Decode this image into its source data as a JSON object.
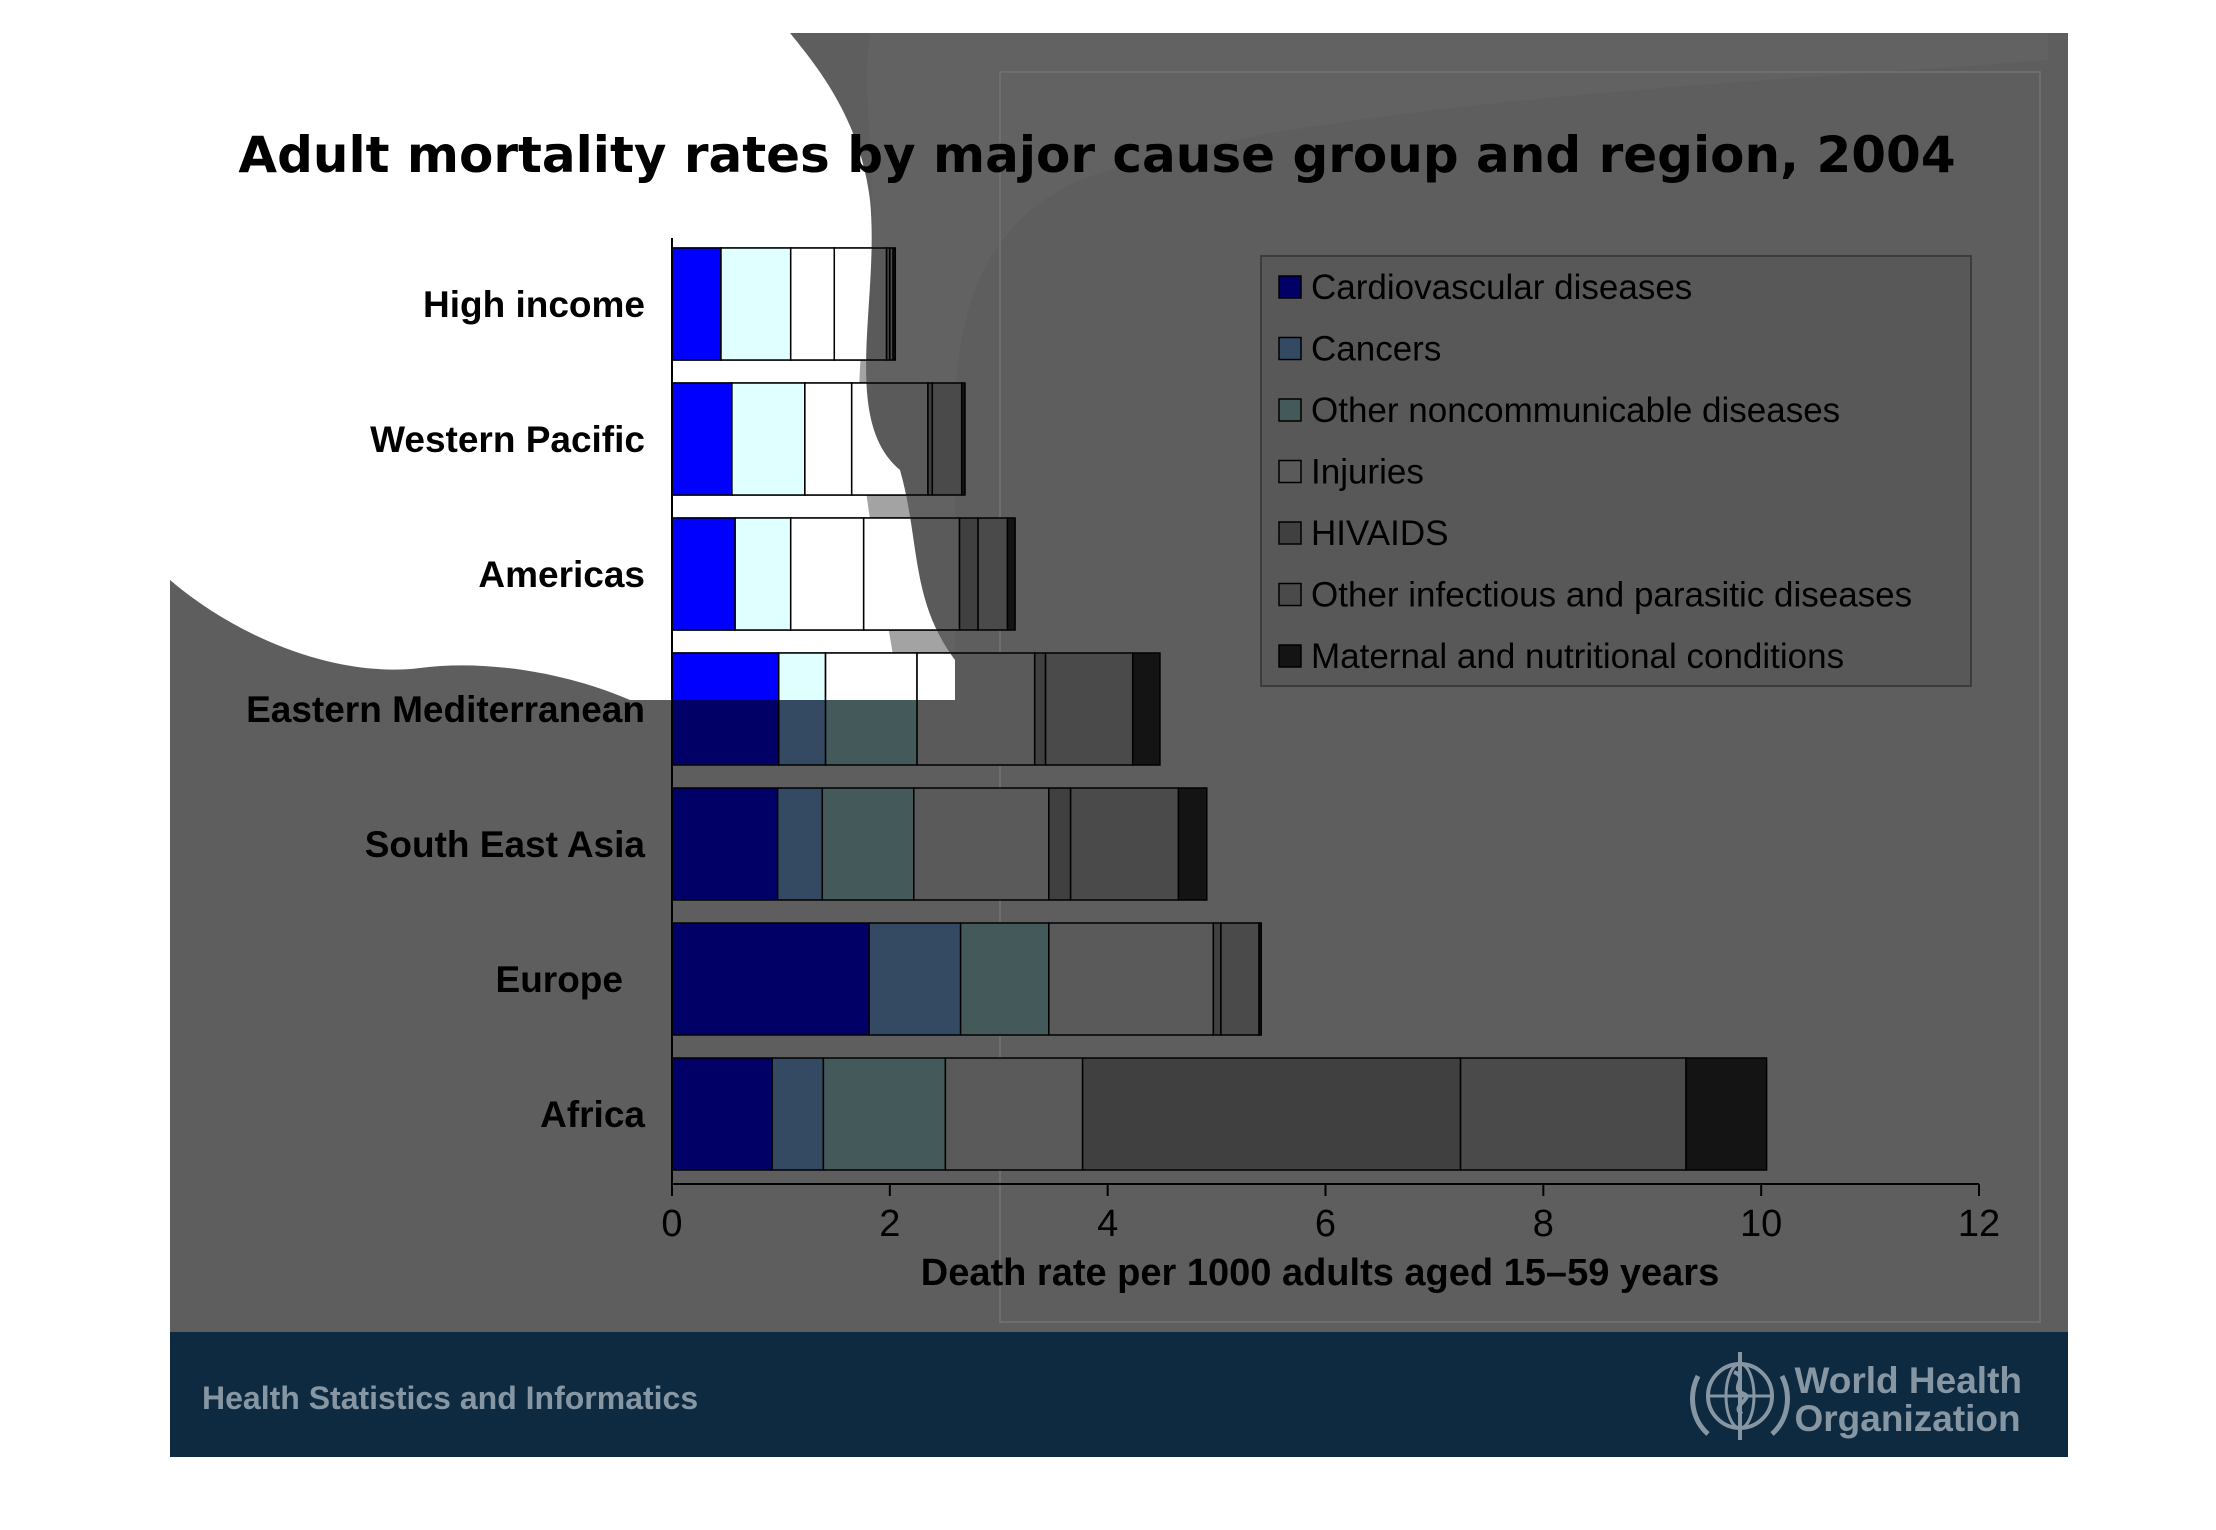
{
  "chart_data": {
    "type": "bar",
    "orientation": "horizontal",
    "stacked": true,
    "title": "Adult mortality rates by major cause group and region, 2004",
    "xlabel": "Death rate per 1000 adults aged 15–59 years",
    "ylabel": "",
    "xlim": [
      0,
      12
    ],
    "xticks": [
      0,
      2,
      4,
      6,
      8,
      10,
      12
    ],
    "grid": false,
    "legend_position": "top-right",
    "categories": [
      "High income",
      "Western Pacific",
      "Americas",
      "Eastern Mediterranean",
      "South East Asia",
      "Europe",
      "Africa"
    ],
    "series": [
      {
        "name": "Cardiovascular diseases",
        "color": "#000066",
        "values": [
          0.45,
          0.55,
          0.58,
          0.98,
          0.97,
          1.81,
          0.92
        ]
      },
      {
        "name": "Cancers",
        "color": "#344a63",
        "values": [
          0.64,
          0.67,
          0.51,
          0.43,
          0.41,
          0.84,
          0.47
        ]
      },
      {
        "name": "Other noncommunicable diseases",
        "color": "#445a5a",
        "values": [
          0.4,
          0.43,
          0.67,
          0.84,
          0.84,
          0.81,
          1.12
        ]
      },
      {
        "name": "Injuries",
        "color": "#5a5a5a",
        "values": [
          0.48,
          0.7,
          0.88,
          1.08,
          1.24,
          1.51,
          1.26
        ]
      },
      {
        "name": "HIVAIDS",
        "color": "#404040",
        "values": [
          0.03,
          0.04,
          0.17,
          0.1,
          0.2,
          0.07,
          3.47
        ]
      },
      {
        "name": "Other infectious and parasitic diseases",
        "color": "#4a4a4a",
        "values": [
          0.03,
          0.27,
          0.27,
          0.8,
          0.99,
          0.35,
          2.07
        ]
      },
      {
        "name": "Maternal and nutritional conditions",
        "color": "#141414",
        "values": [
          0.02,
          0.03,
          0.07,
          0.25,
          0.26,
          0.02,
          0.74
        ]
      }
    ]
  },
  "footer": {
    "left_text": "Health Statistics and Informatics",
    "org_line1": "World Health",
    "org_line2": "Organization"
  }
}
